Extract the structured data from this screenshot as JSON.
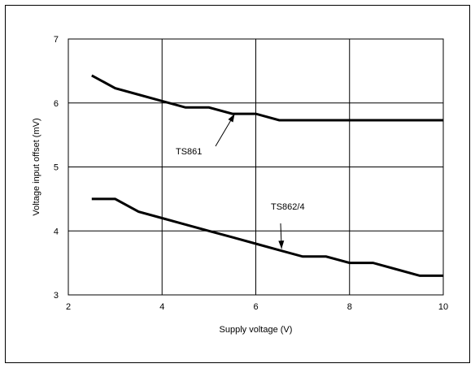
{
  "chart_data": {
    "type": "line",
    "xlabel": "Supply  voltage (V)",
    "ylabel": "Voltage input offset  (mV)",
    "xlim": [
      2,
      10
    ],
    "ylim": [
      3,
      7
    ],
    "xticks": [
      "2",
      "4",
      "6",
      "8",
      "10"
    ],
    "yticks": [
      "3",
      "4",
      "5",
      "6",
      "7"
    ],
    "grid": true,
    "series": [
      {
        "name": "TS861",
        "x": [
          2.5,
          3.0,
          3.5,
          4.0,
          4.5,
          5.0,
          5.5,
          6.0,
          6.5,
          7.0,
          7.5,
          8.0,
          8.5,
          9.0,
          9.5,
          10.0
        ],
        "y": [
          6.43,
          6.23,
          6.13,
          6.03,
          5.93,
          5.93,
          5.83,
          5.83,
          5.73,
          5.73,
          5.73,
          5.73,
          5.73,
          5.73,
          5.73,
          5.73
        ]
      },
      {
        "name": "TS862/4",
        "x": [
          2.5,
          3.0,
          3.5,
          4.0,
          4.5,
          5.0,
          5.5,
          6.0,
          6.5,
          7.0,
          7.5,
          8.0,
          8.5,
          9.0,
          9.5,
          10.0
        ],
        "y": [
          4.5,
          4.5,
          4.3,
          4.2,
          4.1,
          4.0,
          3.9,
          3.8,
          3.7,
          3.6,
          3.6,
          3.5,
          3.5,
          3.4,
          3.3,
          3.3
        ]
      }
    ],
    "annotations": [
      {
        "text": "TS861",
        "series": 0,
        "arrow_to": [
          5.55,
          5.83
        ]
      },
      {
        "text": "TS862/4",
        "series": 1,
        "arrow_to": [
          6.55,
          3.72
        ]
      }
    ]
  }
}
